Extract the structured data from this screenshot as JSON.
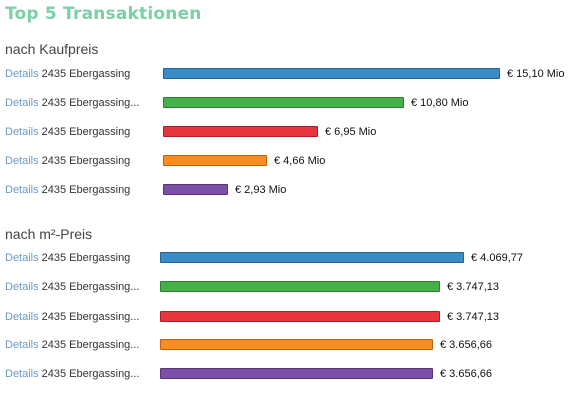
{
  "title": "Top 5 Transaktionen",
  "details_label": "Details",
  "colors": {
    "title": "#7bd0a6",
    "link": "#6b9ac4",
    "bars": [
      {
        "fill": "#3a8cc6",
        "border": "#24628f"
      },
      {
        "fill": "#45b248",
        "border": "#2d7f30"
      },
      {
        "fill": "#e8343c",
        "border": "#a82027"
      },
      {
        "fill": "#fb8c22",
        "border": "#c0620d"
      },
      {
        "fill": "#7c50a8",
        "border": "#553478"
      }
    ]
  },
  "chart_data": [
    {
      "type": "bar",
      "orientation": "horizontal",
      "title": "nach Kaufpreis",
      "categories": [
        "2435 Ebergassing",
        "2435 Ebergassing...",
        "2435 Ebergassing",
        "2435 Ebergassing",
        "2435 Ebergassing"
      ],
      "values": [
        15.1,
        10.8,
        6.95,
        4.66,
        2.93
      ],
      "value_labels": [
        "€ 15,10 Mio",
        "€ 10,80 Mio",
        "€ 6,95 Mio",
        "€ 4,66 Mio",
        "€ 2,93 Mio"
      ],
      "unit": "Mio €",
      "xlim": [
        0,
        15.1
      ]
    },
    {
      "type": "bar",
      "orientation": "horizontal",
      "title": "nach m²-Preis",
      "categories": [
        "2435 Ebergassing",
        "2435 Ebergassing...",
        "2435 Ebergassing...",
        "2435 Ebergassing...",
        "2435 Ebergassing..."
      ],
      "values": [
        4069.77,
        3747.13,
        3747.13,
        3656.66,
        3656.66
      ],
      "value_labels": [
        "€ 4.069,77",
        "€ 3.747,13",
        "€ 3.747,13",
        "€ 3.656,66",
        "€ 3.656,66"
      ],
      "unit": "€/m²",
      "xlim": [
        0,
        4069.77
      ]
    }
  ]
}
